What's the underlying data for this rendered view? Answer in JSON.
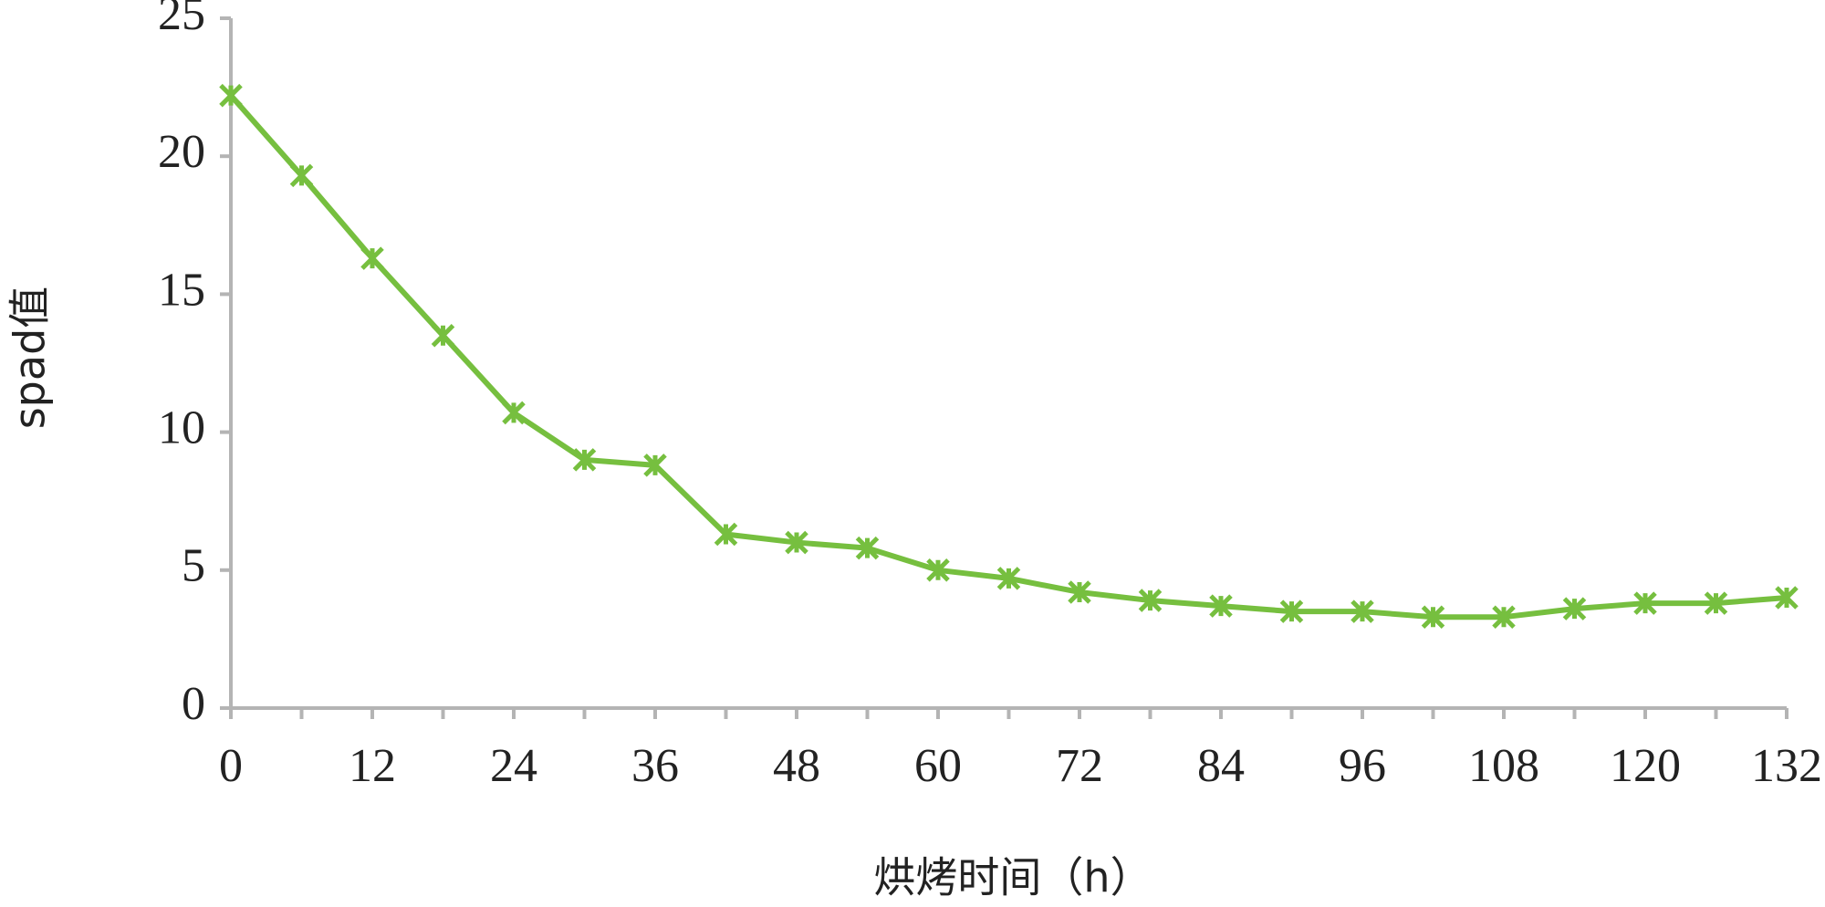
{
  "chart_data": {
    "type": "line",
    "x_label": "烘烤时间（h）",
    "y_label": "spad值",
    "categories": [
      "0",
      null,
      "12",
      null,
      "24",
      null,
      "36",
      null,
      "48",
      null,
      "60",
      null,
      "72",
      null,
      "84",
      null,
      "96",
      null,
      "108",
      null,
      "120",
      null,
      "132"
    ],
    "values": [
      22.2,
      19.3,
      16.3,
      13.5,
      10.7,
      9.0,
      8.8,
      6.3,
      6.0,
      5.8,
      5.0,
      4.7,
      4.2,
      3.9,
      3.7,
      3.5,
      3.5,
      3.3,
      3.3,
      3.6,
      3.8,
      3.8,
      4.0
    ],
    "color": "#76bf3f",
    "marker": "star",
    "ylim": [
      0,
      25
    ],
    "yticks": [
      0,
      5,
      10,
      15,
      20,
      25
    ],
    "grid": false
  }
}
